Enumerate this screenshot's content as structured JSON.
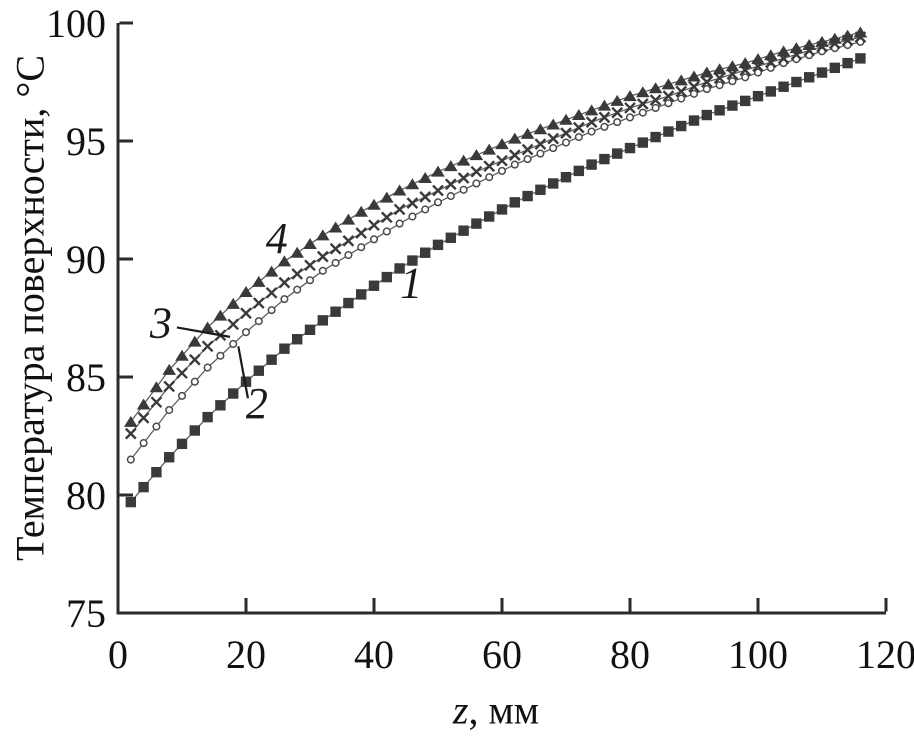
{
  "figure": {
    "background": "#ffffff",
    "ink_color": "#2b2b2b",
    "text_color": "#111111",
    "marker_color": "#3a3a3a",
    "series_line_color": "#5f5f5f",
    "annotation_color": "#1a1a1a"
  },
  "chart_data": {
    "type": "line",
    "title": "",
    "ylabel": "Температура поверхности, °C",
    "xlabel_var": "z",
    "xlabel_unit": ", мм",
    "xlim": [
      0,
      120
    ],
    "ylim": [
      75,
      100
    ],
    "x_ticks": [
      0,
      20,
      40,
      60,
      80,
      100,
      120
    ],
    "y_ticks": [
      75,
      80,
      85,
      90,
      95,
      100
    ],
    "grid": false,
    "legend_position": "none (curves labeled inline with italic numbers 1-4)",
    "marker_step_mm": 2,
    "x_mm": [
      2,
      8,
      14,
      20,
      26,
      32,
      38,
      44,
      50,
      56,
      62,
      68,
      74,
      80,
      86,
      92,
      98,
      104,
      110,
      116
    ],
    "series": [
      {
        "label": "1",
        "marker": "filled-square",
        "values": [
          79.7,
          81.6,
          83.3,
          84.8,
          86.2,
          87.4,
          88.5,
          89.6,
          90.6,
          91.5,
          92.4,
          93.2,
          94.0,
          94.7,
          95.4,
          96.1,
          96.7,
          97.3,
          97.9,
          98.5
        ]
      },
      {
        "label": "2",
        "marker": "open-circle",
        "values": [
          81.5,
          83.6,
          85.4,
          86.9,
          88.3,
          89.5,
          90.5,
          91.5,
          92.4,
          93.2,
          94.0,
          94.7,
          95.4,
          96.0,
          96.6,
          97.2,
          97.7,
          98.3,
          98.8,
          99.2
        ]
      },
      {
        "label": "3",
        "marker": "cross",
        "values": [
          82.6,
          84.6,
          86.3,
          87.7,
          89.0,
          90.1,
          91.1,
          92.1,
          92.9,
          93.7,
          94.4,
          95.1,
          95.8,
          96.4,
          96.9,
          97.5,
          98.0,
          98.5,
          99.0,
          99.4
        ]
      },
      {
        "label": "4",
        "marker": "filled-triangle",
        "values": [
          83.1,
          85.3,
          87.1,
          88.6,
          89.9,
          91.0,
          92.0,
          92.9,
          93.7,
          94.4,
          95.1,
          95.7,
          96.3,
          96.9,
          97.4,
          97.9,
          98.3,
          98.8,
          99.2,
          99.6
        ]
      }
    ],
    "annotations": [
      {
        "text": "1",
        "z": 45.8,
        "t": 89.0
      },
      {
        "text": "2",
        "z": 21.7,
        "t": 83.9,
        "leader": {
          "z1": 18.8,
          "t1": 86.3,
          "z2": 20.3,
          "t2": 84.1
        }
      },
      {
        "text": "3",
        "z": 6.7,
        "t": 87.3,
        "leader": {
          "z1": 9.2,
          "t1": 87.1,
          "z2": 17.5,
          "t2": 86.7
        }
      },
      {
        "text": "4",
        "z": 24.8,
        "t": 90.9
      }
    ]
  }
}
